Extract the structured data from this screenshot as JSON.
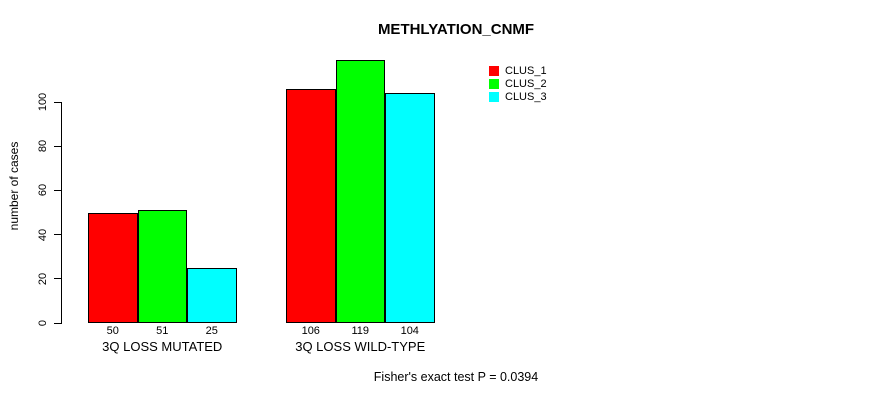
{
  "chart_data": {
    "type": "bar",
    "title": "METHLYATION_CNMF",
    "xlabel": "",
    "ylabel": "number of cases",
    "categories": [
      "3Q LOSS MUTATED",
      "3Q LOSS WILD-TYPE"
    ],
    "series": [
      {
        "name": "CLUS_1",
        "color": "#ff0000",
        "values": [
          50,
          106
        ]
      },
      {
        "name": "CLUS_2",
        "color": "#00ff00",
        "values": [
          51,
          119
        ]
      },
      {
        "name": "CLUS_3",
        "color": "#00ffff",
        "values": [
          25,
          104
        ]
      }
    ],
    "bar_labels": [
      [
        50,
        51,
        25
      ],
      [
        106,
        119,
        104
      ]
    ],
    "yticks": [
      0,
      20,
      40,
      60,
      80,
      100
    ],
    "ylim": [
      0,
      119
    ],
    "grid": false,
    "legend_position": "top-right",
    "annotation": "Fisher's exact test P = 0.0394"
  }
}
